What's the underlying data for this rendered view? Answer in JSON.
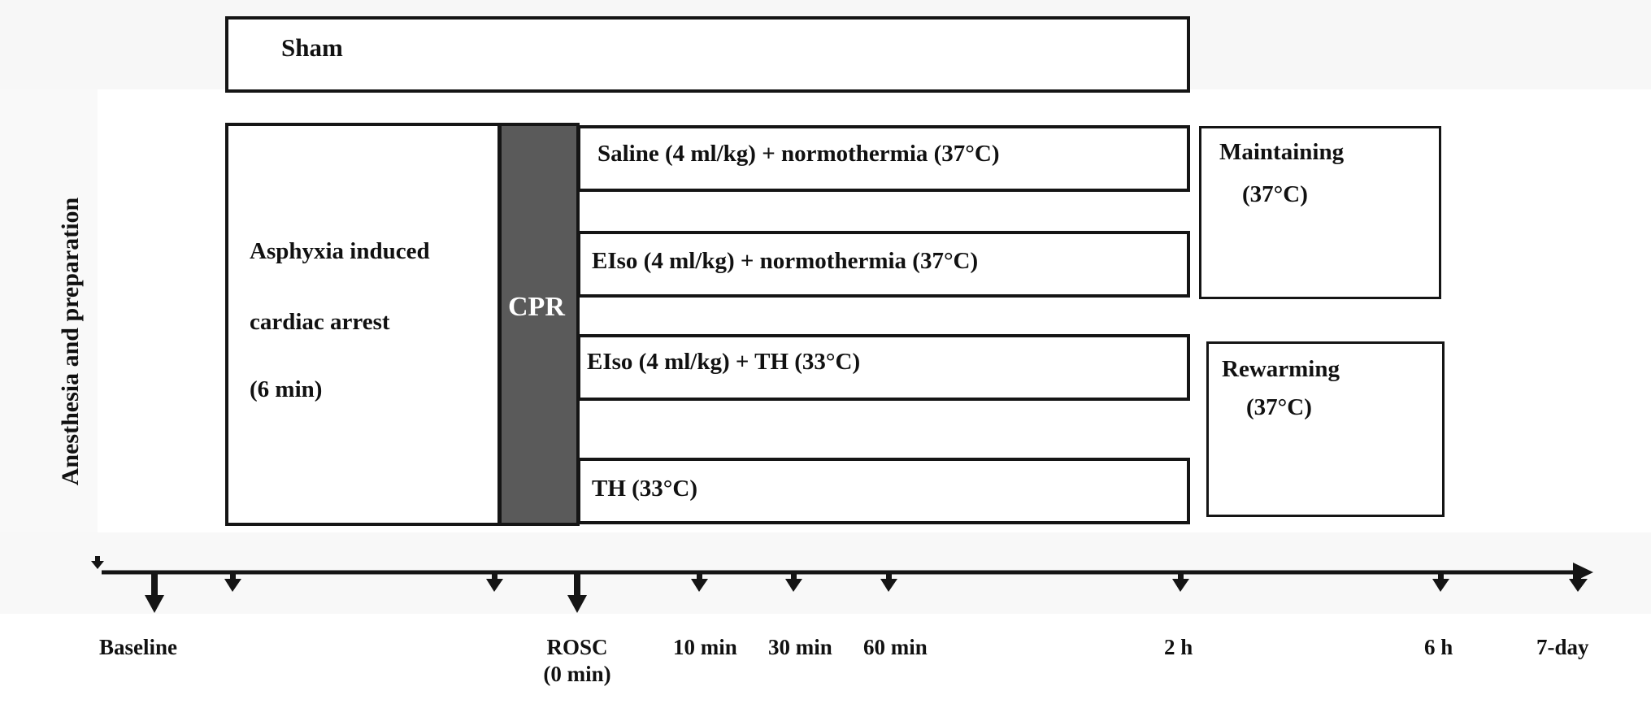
{
  "side_label": "Anesthesia and preparation",
  "boxes": {
    "sham": "Sham",
    "asphyxia_line1": "Asphyxia induced",
    "asphyxia_line2": "cardiac arrest",
    "asphyxia_line3": "(6 min)",
    "cpr": "CPR",
    "group1": "Saline (4 ml/kg) + normothermia (37°C)",
    "group2": "EIso (4 ml/kg) + normothermia (37°C)",
    "group3": "EIso (4 ml/kg) + TH (33°C)",
    "group4": "TH (33°C)",
    "maintaining_line1": "Maintaining",
    "maintaining_line2": "(37°C)",
    "rewarming_line1": "Rewarming",
    "rewarming_line2": "(37°C)"
  },
  "timeline": {
    "baseline": "Baseline",
    "rosc_line1": "ROSC",
    "rosc_line2": "(0 min)",
    "t10": "10 min",
    "t30": "30 min",
    "t60": "60 min",
    "t2h": "2 h",
    "t6h": "6 h",
    "t7d": "7-day"
  },
  "colors": {
    "cpr_fill": "#5a5a5a",
    "border": "#151515"
  }
}
